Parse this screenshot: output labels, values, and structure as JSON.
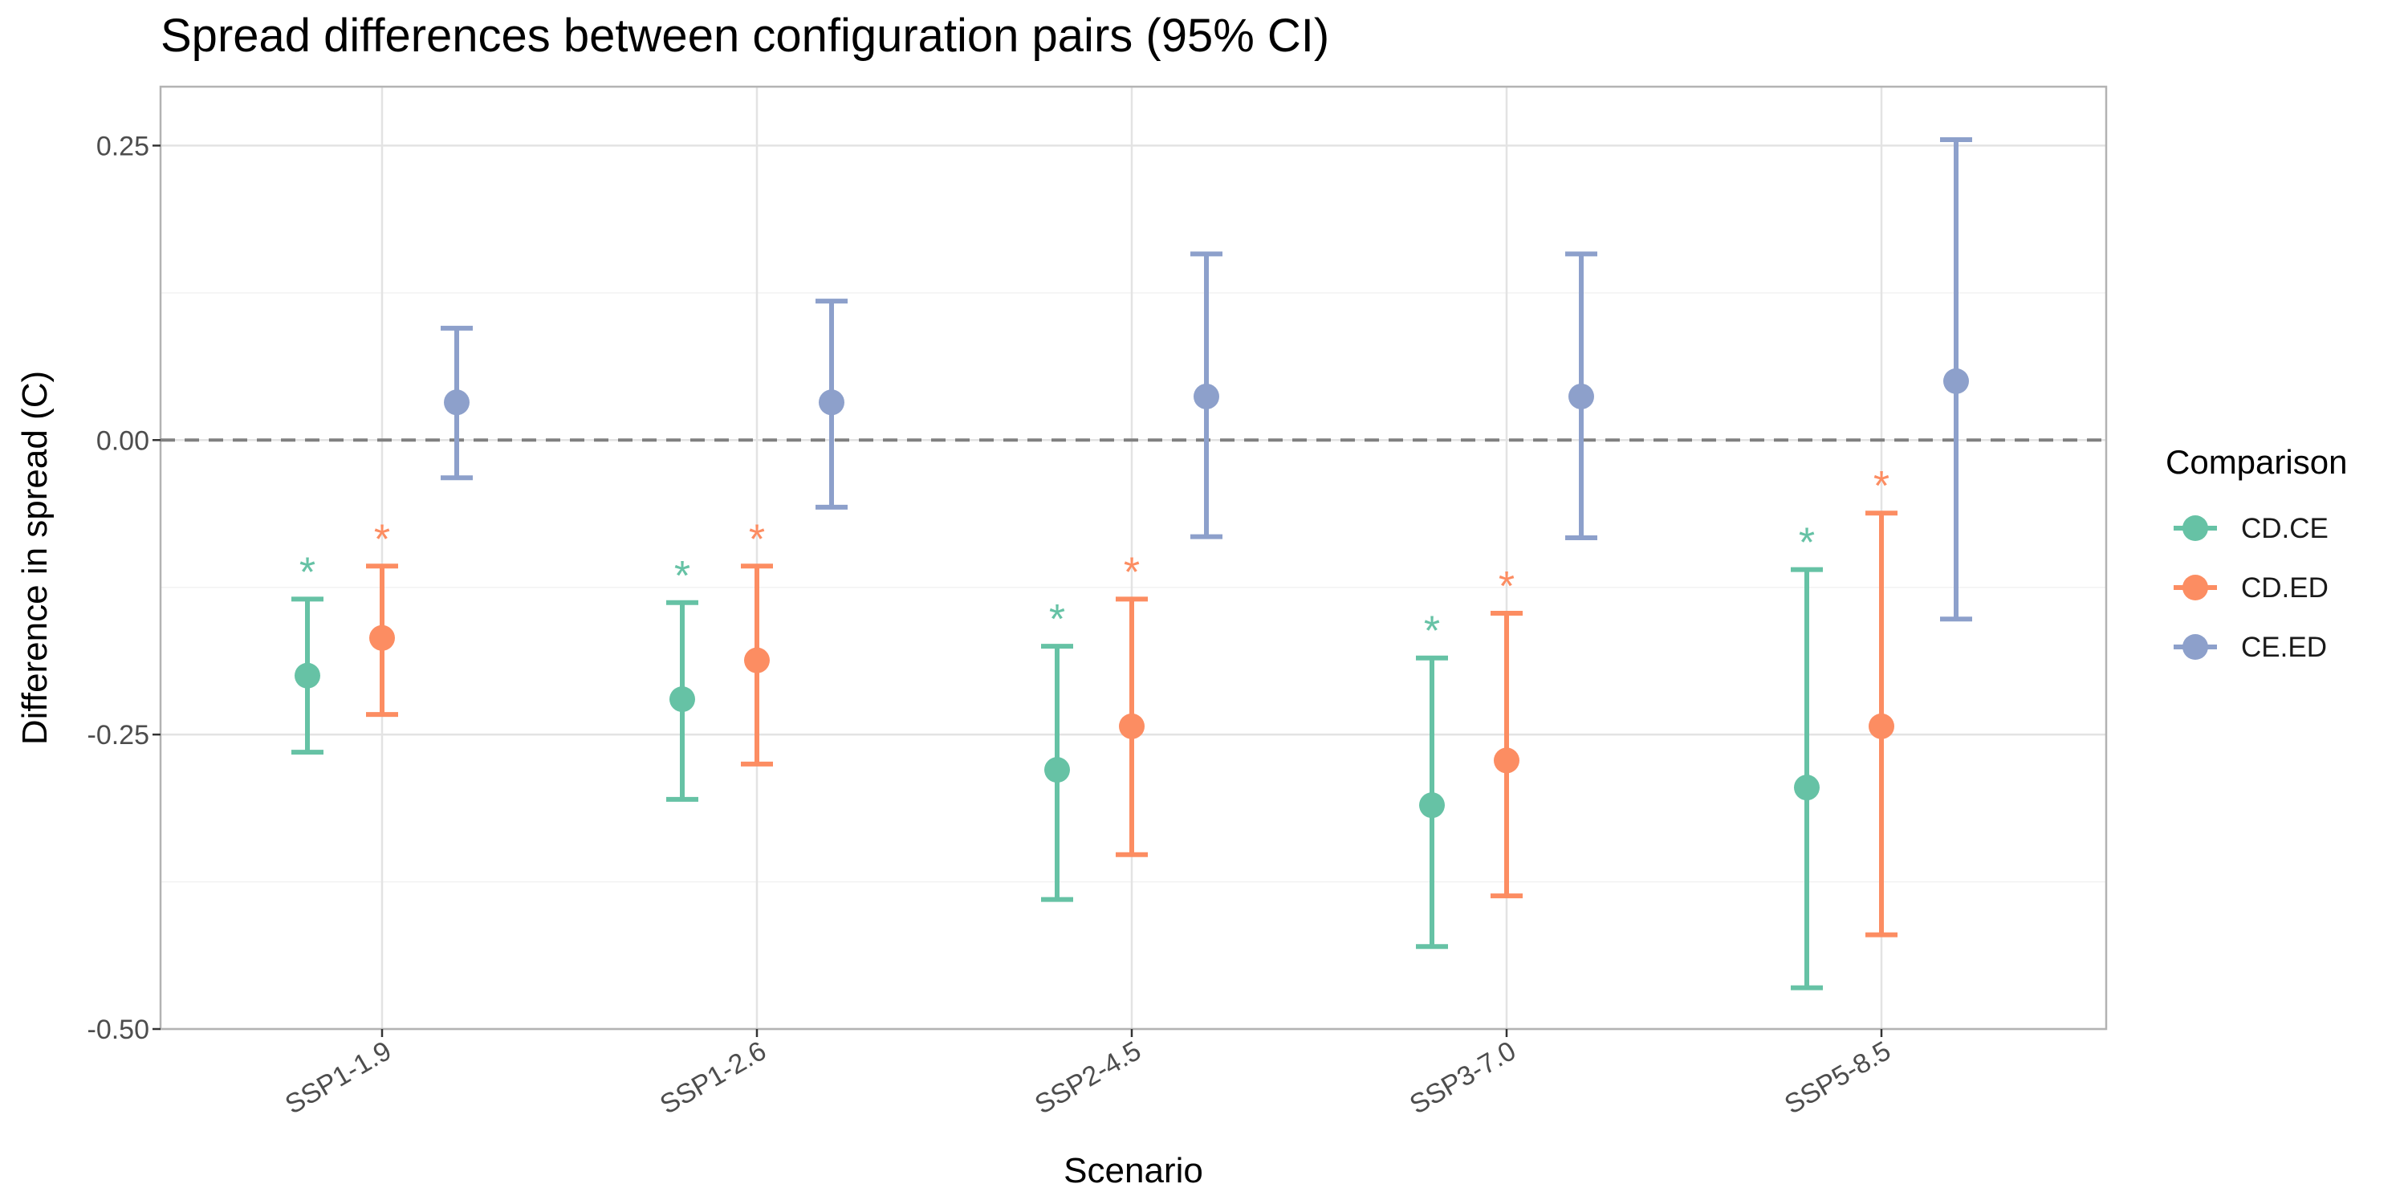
{
  "chart_data": {
    "type": "errorbar",
    "title": "Spread differences between configuration pairs (95% CI)",
    "xlabel": "Scenario",
    "ylabel": "Difference in spread (C)",
    "ylim": [
      -0.5,
      0.3
    ],
    "yticks": [
      -0.5,
      -0.25,
      0.0,
      0.25
    ],
    "ytick_labels": [
      "-0.50",
      "-0.25",
      "0.00",
      "0.25"
    ],
    "reference_line": 0,
    "grid": true,
    "legend": {
      "title": "Comparison",
      "position": "right"
    },
    "categories": [
      "SSP1-1.9",
      "SSP1-2.6",
      "SSP2-4.5",
      "SSP3-7.0",
      "SSP5-8.5"
    ],
    "significance_marker": "*",
    "series": [
      {
        "name": "CD.CE",
        "color": "#66c2a5",
        "estimate": [
          -0.2,
          -0.22,
          -0.28,
          -0.31,
          -0.295
        ],
        "lower": [
          -0.265,
          -0.305,
          -0.39,
          -0.43,
          -0.465
        ],
        "upper": [
          -0.135,
          -0.138,
          -0.175,
          -0.185,
          -0.11
        ],
        "significant": [
          true,
          true,
          true,
          true,
          true
        ]
      },
      {
        "name": "CD.ED",
        "color": "#fc8d62",
        "estimate": [
          -0.168,
          -0.187,
          -0.243,
          -0.272,
          -0.243
        ],
        "lower": [
          -0.233,
          -0.275,
          -0.352,
          -0.387,
          -0.42
        ],
        "upper": [
          -0.107,
          -0.107,
          -0.135,
          -0.147,
          -0.062
        ],
        "significant": [
          true,
          true,
          true,
          true,
          true
        ]
      },
      {
        "name": "CE.ED",
        "color": "#8da0cb",
        "estimate": [
          0.032,
          0.032,
          0.037,
          0.037,
          0.05
        ],
        "lower": [
          -0.032,
          -0.057,
          -0.082,
          -0.083,
          -0.152
        ],
        "upper": [
          0.095,
          0.118,
          0.158,
          0.158,
          0.255
        ],
        "significant": [
          false,
          false,
          false,
          false,
          false
        ]
      }
    ]
  }
}
